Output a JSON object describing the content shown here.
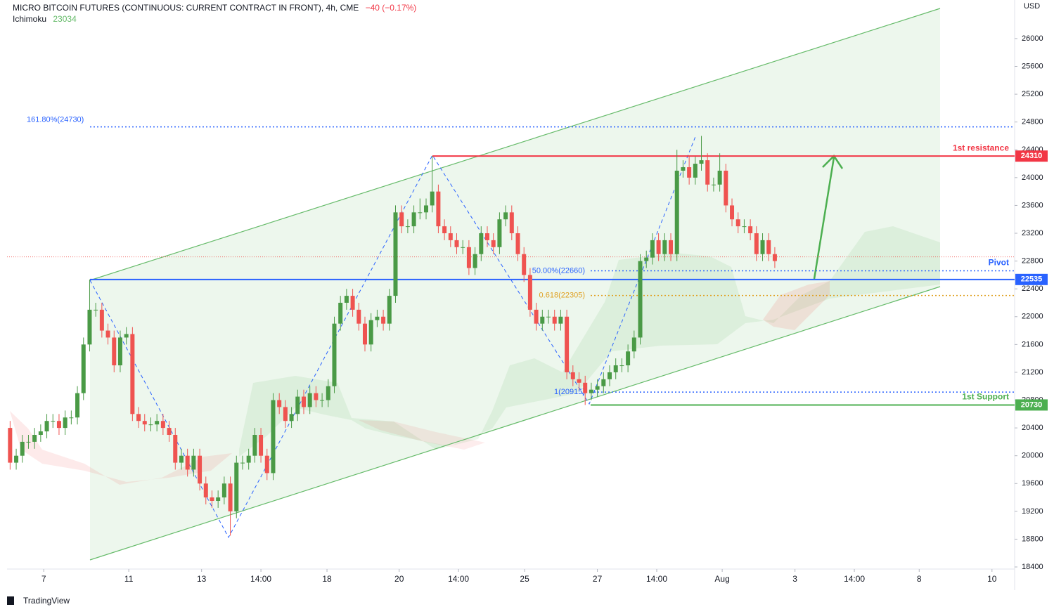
{
  "chart_data": {
    "type": "candlestick",
    "title": "MICRO BITCOIN FUTURES (CONTINUOUS: CURRENT CONTRACT IN FRONT), 4h, CME",
    "change": "−40 (−0.17%)",
    "indicator": "Ichimoku",
    "indicator_value": "23034",
    "currency": "USD",
    "brand": "TradingView",
    "up_color": "#4a9a46",
    "down_color": "#ef5350",
    "open": [
      20400,
      19900,
      20000,
      20200,
      20200,
      20300,
      20350,
      20500,
      20500,
      20400,
      20550,
      20550,
      20900,
      21600,
      22100,
      22100,
      21800,
      21700,
      21300,
      21700,
      21750,
      20600,
      20500,
      20450,
      20450,
      20500,
      20400,
      20300,
      19900,
      20000,
      19800,
      20000,
      19600,
      19400,
      19350,
      19400,
      19600,
      19200,
      19900,
      19900,
      20000,
      20300,
      20000,
      19750,
      20800,
      20700,
      20500,
      20600,
      20850,
      20700,
      20900,
      20800,
      20800,
      21000,
      21900,
      22200,
      22300,
      22100,
      21900,
      21600,
      21950,
      22000,
      21900,
      22300,
      23500,
      23300,
      23300,
      23500,
      23500,
      23600,
      23800,
      23300,
      23200,
      23100,
      23000,
      23000,
      22700,
      22900,
      23200,
      23100,
      23000,
      23400,
      23500,
      23200,
      22900,
      22600,
      22100,
      21900,
      22000,
      22000,
      21900,
      22000,
      21200,
      21100,
      21050,
      20900,
      20950,
      21000,
      21100,
      21200,
      21300,
      21300,
      21500,
      21700,
      22800,
      22850,
      23100,
      22900,
      23100,
      22900,
      24100,
      24150,
      24000,
      24200,
      24250,
      23900,
      23900,
      24100,
      23600,
      23400,
      23300,
      23300,
      23200,
      22900,
      23100,
      22900
    ],
    "high": [
      20500,
      20100,
      20300,
      20300,
      20400,
      20450,
      20600,
      20600,
      20600,
      20650,
      20650,
      21000,
      21700,
      22535,
      22200,
      22200,
      21900,
      21800,
      21800,
      21850,
      21850,
      20700,
      20600,
      20550,
      20600,
      20600,
      20500,
      20400,
      20100,
      20100,
      20100,
      20100,
      19700,
      19500,
      19500,
      19700,
      19700,
      20000,
      20000,
      20100,
      20400,
      20400,
      20100,
      20900,
      20900,
      20800,
      20700,
      20950,
      20950,
      21000,
      21000,
      20900,
      21100,
      22000,
      22300,
      22400,
      22400,
      22200,
      22000,
      22050,
      22100,
      22100,
      22400,
      23600,
      23600,
      23400,
      23600,
      23700,
      23700,
      24310,
      23900,
      23400,
      23300,
      23200,
      23100,
      23100,
      23000,
      23300,
      23300,
      23200,
      23500,
      23600,
      23600,
      23300,
      23000,
      22700,
      22200,
      22100,
      22100,
      22100,
      22100,
      22100,
      21300,
      21200,
      21150,
      21050,
      21100,
      21200,
      21300,
      21400,
      21400,
      21600,
      21800,
      22900,
      22950,
      23200,
      23200,
      23200,
      23200,
      24400,
      24250,
      24300,
      24300,
      24600,
      24350,
      24000,
      24350,
      24200,
      23700,
      23500,
      23400,
      23400,
      23300,
      23200,
      23200,
      23000
    ],
    "low": [
      19800,
      19800,
      19900,
      20100,
      20100,
      20200,
      20250,
      20400,
      20300,
      20300,
      20450,
      20450,
      20800,
      21500,
      22000,
      21700,
      21600,
      21200,
      21200,
      21600,
      20500,
      20400,
      20350,
      20350,
      20350,
      20300,
      20200,
      19800,
      19800,
      19700,
      19700,
      19500,
      19300,
      19250,
      19250,
      19300,
      18850,
      19100,
      19800,
      19800,
      19900,
      19900,
      19650,
      19650,
      20600,
      20400,
      20400,
      20500,
      20600,
      20600,
      20700,
      20700,
      20700,
      20900,
      21800,
      22100,
      22000,
      21800,
      21500,
      21500,
      21850,
      21800,
      21800,
      22200,
      23200,
      23200,
      23200,
      23400,
      23400,
      23500,
      23200,
      23100,
      23000,
      22900,
      22900,
      22600,
      22600,
      22800,
      23000,
      22900,
      22900,
      23300,
      23100,
      22800,
      22500,
      22000,
      21800,
      21800,
      21900,
      21800,
      21800,
      21100,
      21000,
      20950,
      20730,
      20800,
      20850,
      20900,
      21000,
      21100,
      21200,
      21200,
      21400,
      21600,
      22700,
      22750,
      22800,
      22800,
      22800,
      22800,
      24000,
      23900,
      23900,
      24100,
      23800,
      23800,
      23800,
      23500,
      23300,
      23200,
      23200,
      23100,
      22800,
      22800,
      22800,
      22700
    ],
    "close": [
      19900,
      20000,
      20200,
      20200,
      20300,
      20350,
      20500,
      20500,
      20400,
      20550,
      20550,
      20900,
      21600,
      22100,
      22100,
      21800,
      21700,
      21300,
      21700,
      21750,
      20600,
      20500,
      20450,
      20450,
      20500,
      20400,
      20300,
      19900,
      20000,
      19800,
      20000,
      19600,
      19400,
      19350,
      19400,
      19600,
      19200,
      19900,
      19900,
      20000,
      20300,
      20000,
      19750,
      20800,
      20700,
      20500,
      20600,
      20850,
      20700,
      20900,
      20800,
      20800,
      21000,
      21900,
      22200,
      22300,
      22100,
      21900,
      21600,
      21950,
      22000,
      21900,
      22300,
      23500,
      23300,
      23300,
      23500,
      23500,
      23600,
      23800,
      23300,
      23200,
      23100,
      23000,
      23000,
      22700,
      22900,
      23200,
      23100,
      23000,
      23400,
      23500,
      23200,
      22900,
      22600,
      22100,
      21900,
      22000,
      22000,
      21900,
      22000,
      21200,
      21100,
      21050,
      20900,
      20950,
      21000,
      21100,
      21200,
      21300,
      21300,
      21500,
      21700,
      22800,
      22850,
      23100,
      22900,
      23100,
      22900,
      24100,
      24150,
      24000,
      24200,
      24250,
      23900,
      23900,
      24100,
      23600,
      23400,
      23300,
      23300,
      23200,
      22900,
      23100,
      22900,
      22800
    ],
    "xlim": [
      -0.5,
      164.2
    ],
    "xticks": [
      {
        "value": 5.5,
        "label": "7"
      },
      {
        "value": 19.4,
        "label": "11"
      },
      {
        "value": 31.3,
        "label": "13"
      },
      {
        "value": 41,
        "label": "14:00"
      },
      {
        "value": 51.8,
        "label": "18"
      },
      {
        "value": 63.6,
        "label": "20"
      },
      {
        "value": 73.3,
        "label": "14:00"
      },
      {
        "value": 84.1,
        "label": "25"
      },
      {
        "value": 96,
        "label": "27"
      },
      {
        "value": 105.7,
        "label": "14:00"
      },
      {
        "value": 116.4,
        "label": "Aug"
      },
      {
        "value": 128.3,
        "label": "3"
      },
      {
        "value": 138,
        "label": "14:00"
      },
      {
        "value": 148.6,
        "label": "8"
      },
      {
        "value": 160.5,
        "label": "10"
      }
    ],
    "ylim": [
      18370,
      26555
    ],
    "yticks": [
      18400,
      18800,
      19200,
      19600,
      20000,
      20400,
      20800,
      21200,
      21600,
      22000,
      22400,
      22800,
      23200,
      23600,
      24000,
      24400,
      24800,
      25200,
      25600,
      26000
    ],
    "last_line": 22860,
    "levels": [
      {
        "value": 24730,
        "color": "#2962ff",
        "style": "dotted",
        "fib": "161.80%(24730)"
      },
      {
        "value": 24310,
        "color": "#f23645",
        "style": "solid",
        "name": "1st resistance",
        "tag": true
      },
      {
        "value": 22660,
        "color": "#2962ff",
        "style": "dotted",
        "fib": "50.00%(22660)",
        "name": "Pivot"
      },
      {
        "value": 22535,
        "color": "#2962ff",
        "style": "solid",
        "tag": true
      },
      {
        "value": 22305,
        "color": "#e0a020",
        "style": "dotted",
        "fib": "0.618(22305)"
      },
      {
        "value": 20915,
        "color": "#2962ff",
        "style": "dotted",
        "fib": "1(20915)"
      },
      {
        "value": 20730,
        "color": "#4caf50",
        "style": "solid",
        "name": "1st Support",
        "tag": true
      }
    ]
  }
}
